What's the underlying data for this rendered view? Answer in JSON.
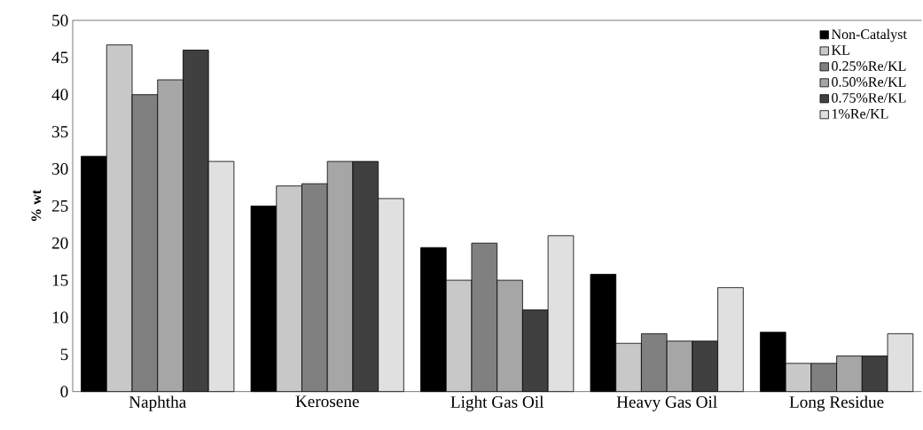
{
  "chart_data": {
    "type": "bar",
    "ylabel": "% wt",
    "categories": [
      "Naphtha",
      "Kerosene",
      "Light Gas Oil",
      "Heavy Gas Oil",
      "Long Residue"
    ],
    "series": [
      {
        "name": "Non-Catalyst",
        "color": "#000000",
        "values": [
          31.7,
          25,
          19.4,
          15.8,
          8
        ]
      },
      {
        "name": "KL",
        "color": "#c8c8c8",
        "values": [
          46.7,
          27.7,
          15,
          6.5,
          3.8
        ]
      },
      {
        "name": "0.25%Re/KL",
        "color": "#808080",
        "values": [
          40,
          28,
          20,
          7.8,
          3.8
        ]
      },
      {
        "name": "0.50%Re/KL",
        "color": "#a6a6a6",
        "values": [
          42,
          31,
          15,
          6.8,
          4.8
        ]
      },
      {
        "name": "0.75%Re/KL",
        "color": "#404040",
        "values": [
          46,
          31,
          11,
          6.8,
          4.8
        ]
      },
      {
        "name": "1%Re/KL",
        "color": "#e0e0e0",
        "values": [
          31,
          26,
          21,
          14,
          7.8
        ]
      }
    ],
    "ylim": [
      0,
      50
    ],
    "yticks": [
      0,
      5,
      10,
      15,
      20,
      25,
      30,
      35,
      40,
      45,
      50
    ],
    "grid": false,
    "legend": "top right"
  }
}
